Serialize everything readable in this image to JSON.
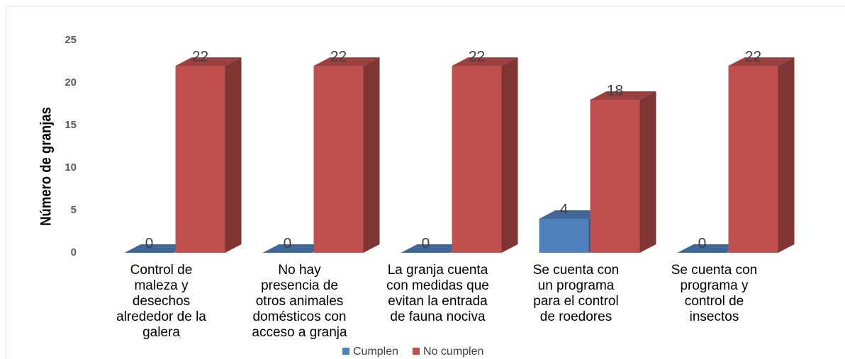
{
  "chart_data": {
    "type": "bar3d",
    "y_label": "Número de granjas",
    "categories": [
      "Control de\nmaleza y\ndesechos\nalrededor de la\ngalera",
      "No hay\npresencia de\notros animales\ndomésticos con\nacceso a granja",
      "La granja cuenta\ncon medidas que\nevitan la entrada\nde fauna nociva",
      "Se cuenta con\nun programa\npara el control\nde roedores",
      "Se cuenta con\nprograma y\ncontrol de\ninsectos"
    ],
    "series": [
      {
        "name": "Cumplen",
        "color": "#4f81bd",
        "values": [
          0,
          0,
          0,
          4,
          0
        ]
      },
      {
        "name": "No cumplen",
        "color": "#c0504d",
        "values": [
          22,
          22,
          22,
          18,
          22
        ]
      }
    ],
    "ylim": [
      0,
      25
    ],
    "yticks": [
      0,
      5,
      10,
      15,
      20,
      25
    ],
    "grid": false,
    "legend": "bottom"
  }
}
